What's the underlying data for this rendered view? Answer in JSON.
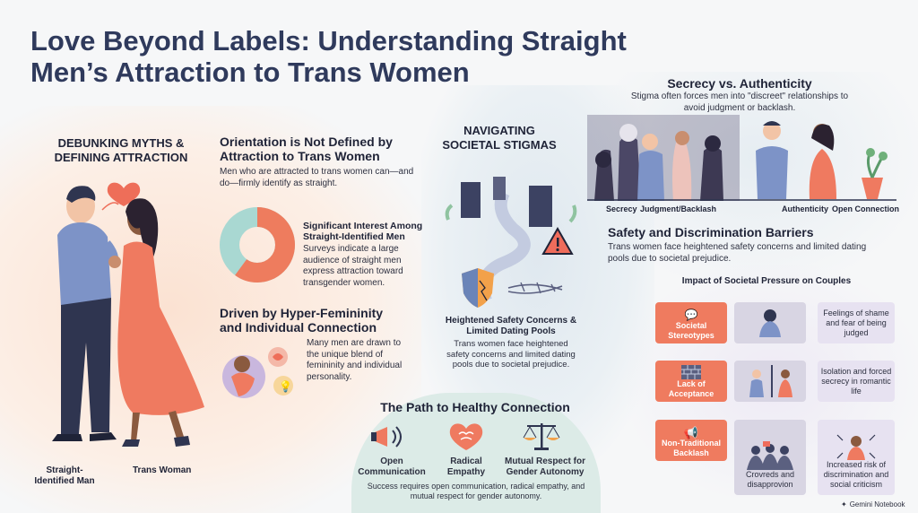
{
  "title": "Love Beyond Labels: Understanding Straight Men’s Attraction to Trans Women",
  "left": {
    "heading": "DEBUNKING MYTHS & DEFINING ATTRACTION",
    "caption_man": "Straight-Identified Man",
    "caption_woman": "Trans Woman"
  },
  "orientation": {
    "heading": "Orientation is Not Defined by Attraction to Trans Women",
    "text": "Men who are attracted to trans women can—and do—firmly identify as straight."
  },
  "interest": {
    "heading": "Significant Interest Among Straight-Identified Men",
    "text": "Surveys indicate a large audience of straight men express attraction toward transgender women.",
    "donut_fraction": 0.6,
    "colors": {
      "primary": "#ee7c5e",
      "secondary": "#a9d8d2"
    }
  },
  "hyper": {
    "heading": "Driven by Hyper-Femininity and Individual Connection",
    "text": "Many men are drawn to the unique blend of femininity and individual personality."
  },
  "stigma": {
    "heading": "NAVIGATING SOCIETAL STIGMAS",
    "safety_heading": "Heightened Safety Concerns & Limited Dating Pools",
    "safety_text": "Trans women face heightened safety concerns and limited dating pools due to societal prejudice."
  },
  "path": {
    "heading": "The Path to Healthy Connection",
    "items": [
      {
        "label": "Open Communication",
        "icon": "megaphone-icon"
      },
      {
        "label": "Radical Empathy",
        "icon": "heart-brain-icon"
      },
      {
        "label": "Mutual Respect for Gender Autonomy",
        "icon": "scales-icon"
      }
    ],
    "text": "Success requires open communication, radical empathy, and mutual respect for gender autonomy."
  },
  "secrecy": {
    "heading": "Secrecy vs. Authenticity",
    "text": "Stigma often forces men into \"discreet\" relationships to avoid judgment or backlash.",
    "labels": [
      "Secrecy",
      "Judgment/Backlash",
      "Authenticity",
      "Open Connection"
    ]
  },
  "barriers": {
    "heading": "Safety and Discrimination Barriers",
    "text": "Trans women face heightened safety concerns and limited dating pools due to societal prejudice."
  },
  "impact": {
    "heading": "Impact of Societal Pressure on Couples",
    "rows": [
      {
        "cause": "Societal Stereotypes",
        "effect": "Feelings of shame and fear of being judged",
        "middle": ""
      },
      {
        "cause": "Lack of Acceptance",
        "effect": "Isolation and forced secrecy in romantic life",
        "middle": ""
      },
      {
        "cause": "Non-Traditional Backlash",
        "effect": "Increased risk of discrimination and social criticism",
        "middle": "Crovreds and disapprovion"
      }
    ]
  },
  "footer": {
    "brand": "Gemini Notebook"
  }
}
